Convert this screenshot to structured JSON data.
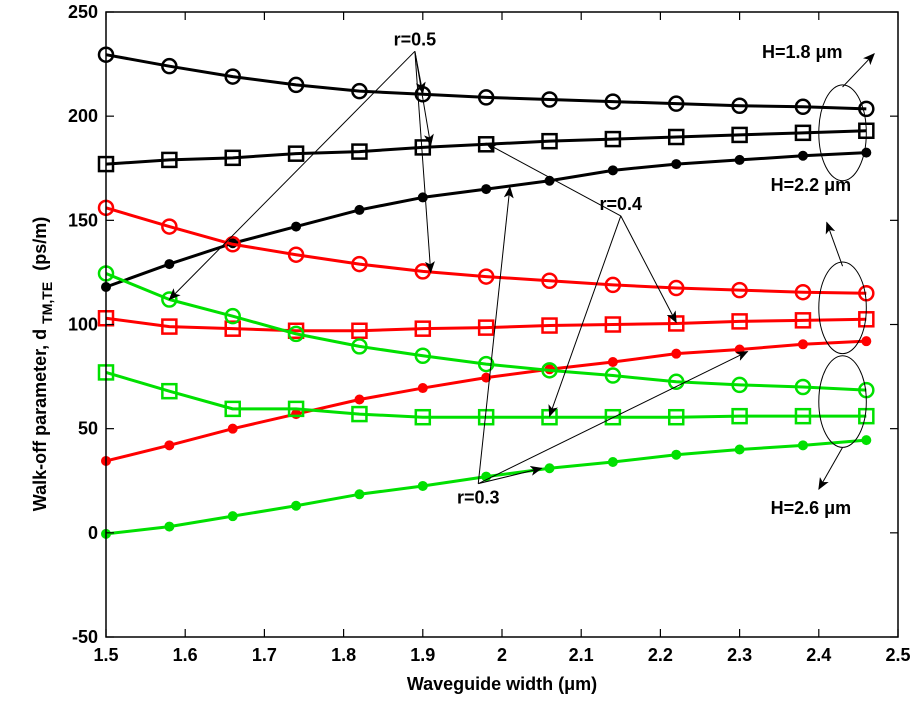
{
  "chart_data": {
    "type": "line",
    "xlabel": "Waveguide width  (μm)",
    "ylabel": "Walk-off parameter, d",
    "ylabel_sub": "TM,TE",
    "ylabel_unit": "(ps/m)",
    "xlim": [
      1.5,
      2.5
    ],
    "ylim": [
      -50,
      250
    ],
    "xticks": [
      "1.5",
      "1.6",
      "1.7",
      "1.8",
      "1.9",
      "2",
      "2.1",
      "2.2",
      "2.3",
      "2.4",
      "2.5"
    ],
    "yticks": [
      "-50",
      "0",
      "50",
      "100",
      "150",
      "200",
      "250"
    ],
    "grid": false,
    "x": [
      1.5,
      1.58,
      1.66,
      1.74,
      1.82,
      1.9,
      1.98,
      2.06,
      2.14,
      2.22,
      2.3,
      2.38,
      2.46
    ],
    "series": [
      {
        "color": "#000000",
        "marker": "circle",
        "values": [
          229.5,
          224,
          219,
          215,
          212,
          210.5,
          209,
          208,
          207,
          206,
          205,
          204.5,
          203.5
        ]
      },
      {
        "color": "#000000",
        "marker": "square",
        "values": [
          177,
          179,
          180,
          182,
          183,
          185,
          186.5,
          188,
          189,
          190,
          191,
          192,
          193
        ]
      },
      {
        "color": "#000000",
        "marker": "dot",
        "values": [
          118,
          129,
          139,
          147,
          155,
          161,
          165,
          169,
          174,
          177,
          179,
          181,
          182.5
        ]
      },
      {
        "color": "#ff0000",
        "marker": "circle",
        "values": [
          156,
          147,
          138.5,
          133.5,
          129,
          125.5,
          123,
          121,
          119,
          117.5,
          116.5,
          115.5,
          115
        ]
      },
      {
        "color": "#ff0000",
        "marker": "square",
        "values": [
          103,
          99,
          98,
          97,
          97,
          98,
          98.5,
          99.5,
          100,
          100.5,
          101.5,
          102,
          102.5
        ]
      },
      {
        "color": "#ff0000",
        "marker": "dot",
        "values": [
          34.5,
          42,
          50,
          57,
          64,
          69.5,
          74.5,
          78.5,
          82,
          86,
          88,
          90.5,
          92
        ]
      },
      {
        "color": "#00e000",
        "marker": "circle",
        "values": [
          124.5,
          112,
          104,
          95.5,
          89.5,
          85,
          81,
          78,
          75.5,
          72.5,
          71,
          70,
          68.5
        ]
      },
      {
        "color": "#00e000",
        "marker": "square",
        "values": [
          77,
          68,
          59.5,
          59.5,
          57,
          55.5,
          55.5,
          55.5,
          55.5,
          55.5,
          56,
          56,
          56
        ]
      },
      {
        "color": "#00e000",
        "marker": "dot",
        "values": [
          -0.5,
          3,
          8,
          13,
          18.5,
          22.5,
          27,
          31,
          34,
          37.5,
          40,
          42,
          44.5
        ]
      }
    ],
    "annotations": [
      {
        "id": "r05",
        "text": "r=0.5",
        "anchor": [
          1.89,
          234
        ],
        "targets": [
          [
            1.9,
            211
          ],
          [
            1.91,
            186
          ],
          [
            1.91,
            125
          ],
          [
            1.58,
            112
          ]
        ]
      },
      {
        "id": "r04",
        "text": "r=0.4",
        "anchor": [
          2.15,
          155
        ],
        "targets": [
          [
            1.98,
            187
          ],
          [
            2.22,
            101
          ],
          [
            2.06,
            56
          ]
        ]
      },
      {
        "id": "r03",
        "text": "r=0.3",
        "anchor": [
          1.97,
          14
        ],
        "targets": [
          [
            2.01,
            166
          ],
          [
            2.31,
            87
          ],
          [
            2.05,
            31
          ]
        ]
      },
      {
        "id": "h18",
        "text": "H=1.8 μm",
        "anchor": [
          2.43,
          228
        ],
        "ellipse": [
          2.43,
          192,
          0.03,
          23
        ],
        "arrow_from": [
          2.43,
          214
        ],
        "arrow_to": [
          2.47,
          230
        ]
      },
      {
        "id": "h22",
        "text": "H=2.2 μm",
        "anchor": [
          2.39,
          164
        ],
        "ellipse": [
          2.43,
          108,
          0.03,
          22
        ],
        "arrow_from": [
          2.43,
          128
        ],
        "arrow_to": [
          2.41,
          149
        ]
      },
      {
        "id": "h26",
        "text": "H=2.6 μm",
        "anchor": [
          2.39,
          9
        ],
        "ellipse": [
          2.43,
          63,
          0.03,
          22
        ],
        "arrow_from": [
          2.43,
          41
        ],
        "arrow_to": [
          2.4,
          21
        ]
      }
    ]
  }
}
